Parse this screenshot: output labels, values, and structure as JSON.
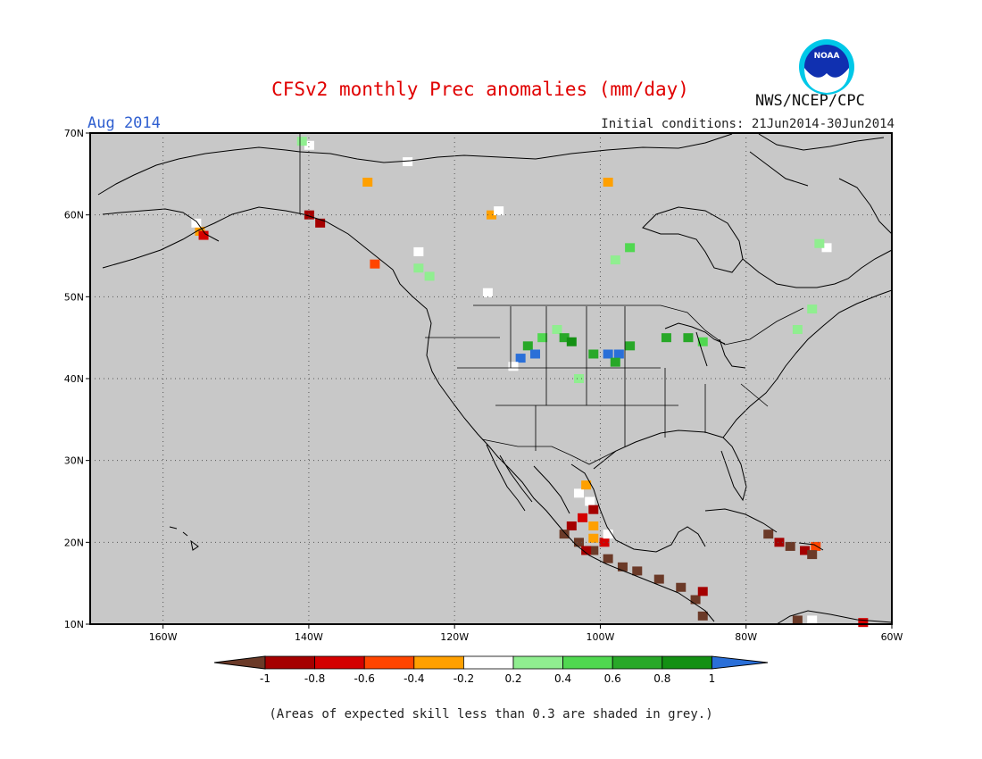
{
  "title": "CFSv2 monthly Prec anomalies (mm/day)",
  "target_month": "Aug 2014",
  "initial_conditions": "Initial conditions: 21Jun2014-30Jun2014",
  "agency": "NWS/NCEP/CPC",
  "logo_text": "NOAA",
  "footnote": "(Areas of expected skill less than 0.3 are shaded in grey.)",
  "map": {
    "lon_range": [
      -170,
      -60
    ],
    "lat_range": [
      10,
      70
    ],
    "background_color": "#c8c8c8",
    "lat_ticks": [
      {
        "value": 70,
        "label": "70N"
      },
      {
        "value": 60,
        "label": "60N"
      },
      {
        "value": 50,
        "label": "50N"
      },
      {
        "value": 40,
        "label": "40N"
      },
      {
        "value": 30,
        "label": "30N"
      },
      {
        "value": 20,
        "label": "20N"
      },
      {
        "value": 10,
        "label": "10N"
      }
    ],
    "lon_ticks": [
      {
        "value": -160,
        "label": "160W"
      },
      {
        "value": -140,
        "label": "140W"
      },
      {
        "value": -120,
        "label": "120W"
      },
      {
        "value": -100,
        "label": "100W"
      },
      {
        "value": -80,
        "label": "80W"
      },
      {
        "value": -60,
        "label": "60W"
      }
    ]
  },
  "colorbar": {
    "levels": [
      "-1",
      "-0.8",
      "-0.6",
      "-0.4",
      "-0.2",
      "0.2",
      "0.4",
      "0.6",
      "0.8",
      "1"
    ],
    "colors": [
      "#6b3a28",
      "#a50000",
      "#d40000",
      "#ff4500",
      "#ffa000",
      "#ffffff",
      "#90ee90",
      "#50d850",
      "#28a828",
      "#139013",
      "#2a6fd8"
    ]
  },
  "anomaly_cells": [
    {
      "lon": -155,
      "lat": 58,
      "color": "#ffa000"
    },
    {
      "lon": -154.5,
      "lat": 57.5,
      "color": "#d40000"
    },
    {
      "lon": -155.5,
      "lat": 59,
      "color": "#ffffff"
    },
    {
      "lon": -140,
      "lat": 60,
      "color": "#a50000"
    },
    {
      "lon": -138.5,
      "lat": 59,
      "color": "#a50000"
    },
    {
      "lon": -140,
      "lat": 68.5,
      "color": "#ffffff"
    },
    {
      "lon": -141,
      "lat": 69,
      "color": "#90ee90"
    },
    {
      "lon": -131,
      "lat": 54,
      "color": "#ff4500"
    },
    {
      "lon": -125,
      "lat": 55.5,
      "color": "#ffffff"
    },
    {
      "lon": -125,
      "lat": 53.5,
      "color": "#90ee90"
    },
    {
      "lon": -123.5,
      "lat": 52.5,
      "color": "#90ee90"
    },
    {
      "lon": -132,
      "lat": 64,
      "color": "#ffa000"
    },
    {
      "lon": -126.5,
      "lat": 66.5,
      "color": "#ffffff"
    },
    {
      "lon": -115,
      "lat": 60,
      "color": "#ffa000"
    },
    {
      "lon": -114,
      "lat": 60.5,
      "color": "#ffffff"
    },
    {
      "lon": -99,
      "lat": 64,
      "color": "#ffa000"
    },
    {
      "lon": -115.5,
      "lat": 50.5,
      "color": "#ffffff"
    },
    {
      "lon": -110,
      "lat": 44,
      "color": "#28a828"
    },
    {
      "lon": -109,
      "lat": 43,
      "color": "#2a6fd8"
    },
    {
      "lon": -111,
      "lat": 42.5,
      "color": "#2a6fd8"
    },
    {
      "lon": -108,
      "lat": 45,
      "color": "#50d850"
    },
    {
      "lon": -106,
      "lat": 46,
      "color": "#90ee90"
    },
    {
      "lon": -105,
      "lat": 45,
      "color": "#28a828"
    },
    {
      "lon": -104,
      "lat": 44.5,
      "color": "#139013"
    },
    {
      "lon": -112,
      "lat": 41.5,
      "color": "#ffffff"
    },
    {
      "lon": -103,
      "lat": 40,
      "color": "#90ee90"
    },
    {
      "lon": -101,
      "lat": 43,
      "color": "#28a828"
    },
    {
      "lon": -99,
      "lat": 43,
      "color": "#2a6fd8"
    },
    {
      "lon": -97.5,
      "lat": 43,
      "color": "#2a6fd8"
    },
    {
      "lon": -98,
      "lat": 42,
      "color": "#28a828"
    },
    {
      "lon": -96,
      "lat": 44,
      "color": "#28a828"
    },
    {
      "lon": -91,
      "lat": 45,
      "color": "#28a828"
    },
    {
      "lon": -88,
      "lat": 45,
      "color": "#28a828"
    },
    {
      "lon": -86,
      "lat": 44.5,
      "color": "#50d850"
    },
    {
      "lon": -71,
      "lat": 48.5,
      "color": "#90ee90"
    },
    {
      "lon": -73,
      "lat": 46,
      "color": "#90ee90"
    },
    {
      "lon": -69,
      "lat": 56,
      "color": "#ffffff"
    },
    {
      "lon": -70,
      "lat": 56.5,
      "color": "#90ee90"
    },
    {
      "lon": -96,
      "lat": 56,
      "color": "#50d850"
    },
    {
      "lon": -98,
      "lat": 54.5,
      "color": "#90ee90"
    },
    {
      "lon": -103,
      "lat": 26,
      "color": "#ffffff"
    },
    {
      "lon": -102,
      "lat": 27,
      "color": "#ffa000"
    },
    {
      "lon": -101.5,
      "lat": 25,
      "color": "#ffffff"
    },
    {
      "lon": -101,
      "lat": 24,
      "color": "#a50000"
    },
    {
      "lon": -102.5,
      "lat": 23,
      "color": "#d40000"
    },
    {
      "lon": -101,
      "lat": 22,
      "color": "#ffa000"
    },
    {
      "lon": -104,
      "lat": 22,
      "color": "#a50000"
    },
    {
      "lon": -105,
      "lat": 21,
      "color": "#6b3a28"
    },
    {
      "lon": -103,
      "lat": 20,
      "color": "#6b3a28"
    },
    {
      "lon": -101,
      "lat": 19,
      "color": "#6b3a28"
    },
    {
      "lon": -99,
      "lat": 18,
      "color": "#6b3a28"
    },
    {
      "lon": -97,
      "lat": 17,
      "color": "#6b3a28"
    },
    {
      "lon": -95,
      "lat": 16.5,
      "color": "#6b3a28"
    },
    {
      "lon": -92,
      "lat": 15.5,
      "color": "#6b3a28"
    },
    {
      "lon": -89,
      "lat": 14.5,
      "color": "#6b3a28"
    },
    {
      "lon": -87,
      "lat": 13,
      "color": "#6b3a28"
    },
    {
      "lon": -86,
      "lat": 11,
      "color": "#6b3a28"
    },
    {
      "lon": -86,
      "lat": 14,
      "color": "#a50000"
    },
    {
      "lon": -99.5,
      "lat": 20,
      "color": "#d40000"
    },
    {
      "lon": -101,
      "lat": 20.5,
      "color": "#ffa000"
    },
    {
      "lon": -102,
      "lat": 19,
      "color": "#a50000"
    },
    {
      "lon": -99,
      "lat": 21,
      "color": "#ffffff"
    },
    {
      "lon": -77,
      "lat": 21,
      "color": "#6b3a28"
    },
    {
      "lon": -75.5,
      "lat": 20,
      "color": "#a50000"
    },
    {
      "lon": -74,
      "lat": 19.5,
      "color": "#6b3a28"
    },
    {
      "lon": -72,
      "lat": 19,
      "color": "#a50000"
    },
    {
      "lon": -70.5,
      "lat": 19.5,
      "color": "#ff4500"
    },
    {
      "lon": -71,
      "lat": 18.5,
      "color": "#6b3a28"
    },
    {
      "lon": -73,
      "lat": 10.5,
      "color": "#6b3a28"
    },
    {
      "lon": -71,
      "lat": 10.5,
      "color": "#ffffff"
    },
    {
      "lon": -64,
      "lat": 10.2,
      "color": "#d40000"
    }
  ]
}
